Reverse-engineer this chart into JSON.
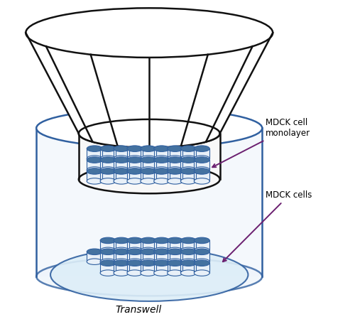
{
  "background_color": "#ffffff",
  "outer_cyl_color": "#3060a0",
  "insert_cyl_color": "#111111",
  "lid_color": "#111111",
  "cell_top_color": "#4472a0",
  "cell_body_color": "#e8f0f8",
  "cell_edge_color": "#3060a0",
  "dish_fill": "#ddeef8",
  "dish_edge": "#3060a0",
  "outer_fill": "#eef4fb",
  "insert_fill": "#f8f8f8",
  "arrow_color": "#6b2070",
  "text_color": "#000000",
  "label1": "MDCK cell\nmonolayer",
  "label2": "MDCK cells",
  "label3": "Transwell",
  "outer_lw": 1.8,
  "insert_lw": 1.8,
  "lid_lw": 1.8,
  "cell_lw": 0.8
}
